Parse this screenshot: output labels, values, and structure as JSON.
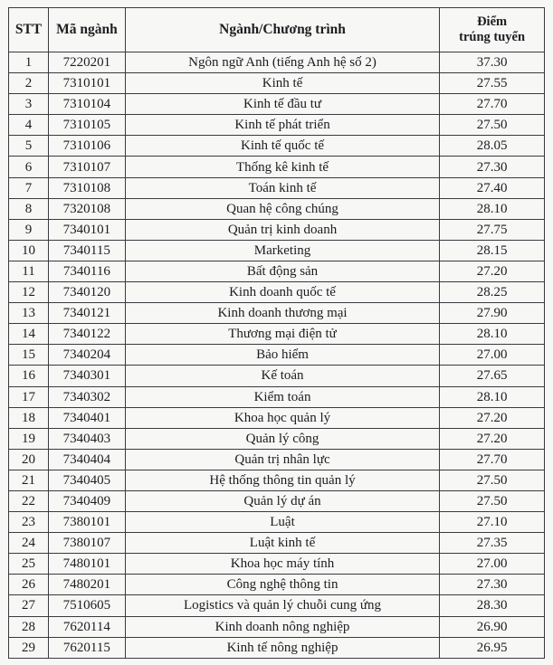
{
  "headers": {
    "stt": "STT",
    "code": "Mã ngành",
    "program": "Ngành/Chương trình",
    "score_line1": "Điểm",
    "score_line2": "trúng tuyển"
  },
  "rows": [
    [
      "1",
      "7220201",
      "Ngôn ngữ Anh (tiếng Anh hệ số 2)",
      "37.30"
    ],
    [
      "2",
      "7310101",
      "Kinh tế",
      "27.55"
    ],
    [
      "3",
      "7310104",
      "Kinh tế đầu tư",
      "27.70"
    ],
    [
      "4",
      "7310105",
      "Kinh tế phát triển",
      "27.50"
    ],
    [
      "5",
      "7310106",
      "Kinh tế quốc tế",
      "28.05"
    ],
    [
      "6",
      "7310107",
      "Thống kê kinh tế",
      "27.30"
    ],
    [
      "7",
      "7310108",
      "Toán kinh tế",
      "27.40"
    ],
    [
      "8",
      "7320108",
      "Quan hệ công chúng",
      "28.10"
    ],
    [
      "9",
      "7340101",
      "Quản trị kinh doanh",
      "27.75"
    ],
    [
      "10",
      "7340115",
      "Marketing",
      "28.15"
    ],
    [
      "11",
      "7340116",
      "Bất động sản",
      "27.20"
    ],
    [
      "12",
      "7340120",
      "Kinh doanh quốc tế",
      "28.25"
    ],
    [
      "13",
      "7340121",
      "Kinh doanh thương mại",
      "27.90"
    ],
    [
      "14",
      "7340122",
      "Thương mại điện tử",
      "28.10"
    ],
    [
      "15",
      "7340204",
      "Bảo hiểm",
      "27.00"
    ],
    [
      "16",
      "7340301",
      "Kế toán",
      "27.65"
    ],
    [
      "17",
      "7340302",
      "Kiểm toán",
      "28.10"
    ],
    [
      "18",
      "7340401",
      "Khoa học quản lý",
      "27.20"
    ],
    [
      "19",
      "7340403",
      "Quản lý công",
      "27.20"
    ],
    [
      "20",
      "7340404",
      "Quản trị nhân lực",
      "27.70"
    ],
    [
      "21",
      "7340405",
      "Hệ thống thông tin quản lý",
      "27.50"
    ],
    [
      "22",
      "7340409",
      "Quản lý dự án",
      "27.50"
    ],
    [
      "23",
      "7380101",
      "Luật",
      "27.10"
    ],
    [
      "24",
      "7380107",
      "Luật kinh tế",
      "27.35"
    ],
    [
      "25",
      "7480101",
      "Khoa học máy tính",
      "27.00"
    ],
    [
      "26",
      "7480201",
      "Công nghệ thông tin",
      "27.30"
    ],
    [
      "27",
      "7510605",
      "Logistics và quản lý chuỗi cung ứng",
      "28.30"
    ],
    [
      "28",
      "7620114",
      "Kinh doanh nông nghiệp",
      "26.90"
    ],
    [
      "29",
      "7620115",
      "Kinh tế nông nghiệp",
      "26.95"
    ]
  ]
}
